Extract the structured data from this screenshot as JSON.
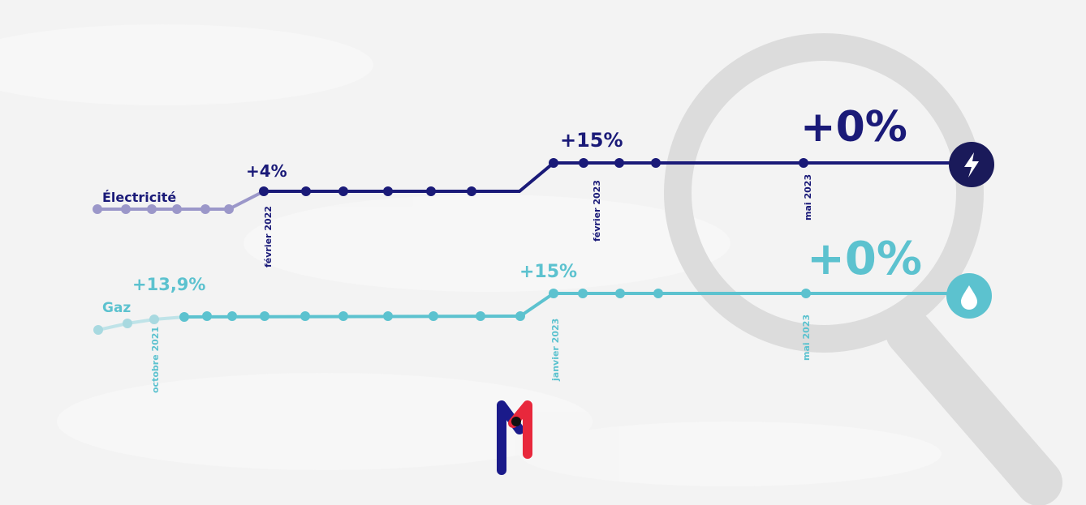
{
  "electricity": {
    "label": "Électricité",
    "changes": [
      "+4%",
      "+15%",
      "+0%"
    ],
    "dates": [
      "février 2022",
      "février 2023",
      "mai 2023"
    ]
  },
  "gas": {
    "label": "Gaz",
    "changes": [
      "+13,9%",
      "+15%",
      "+0%"
    ],
    "dates": [
      "octobre 2021",
      "janvier 2023",
      "mai 2023"
    ]
  }
}
